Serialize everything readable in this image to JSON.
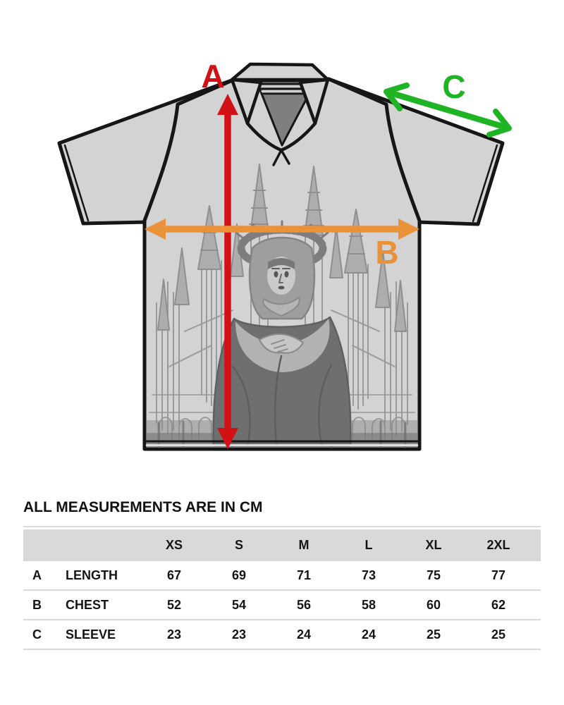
{
  "diagram": {
    "labels": {
      "length": "A",
      "chest": "B",
      "sleeve": "C"
    }
  },
  "colors": {
    "length_arrow": "#d21116",
    "chest_arrow": "#e9923a",
    "sleeve_arrow": "#1fb424",
    "table_header_bg": "#d9d9d9"
  },
  "note": "ALL MEASUREMENTS ARE IN CM",
  "size_chart": {
    "sizes": [
      "XS",
      "S",
      "M",
      "L",
      "XL",
      "2XL"
    ],
    "rows": [
      {
        "key": "A",
        "label": "LENGTH",
        "values": [
          "67",
          "69",
          "71",
          "73",
          "75",
          "77"
        ]
      },
      {
        "key": "B",
        "label": "CHEST",
        "values": [
          "52",
          "54",
          "56",
          "58",
          "60",
          "62"
        ]
      },
      {
        "key": "C",
        "label": "SLEEVE",
        "values": [
          "23",
          "23",
          "24",
          "24",
          "25",
          "25"
        ]
      }
    ]
  }
}
